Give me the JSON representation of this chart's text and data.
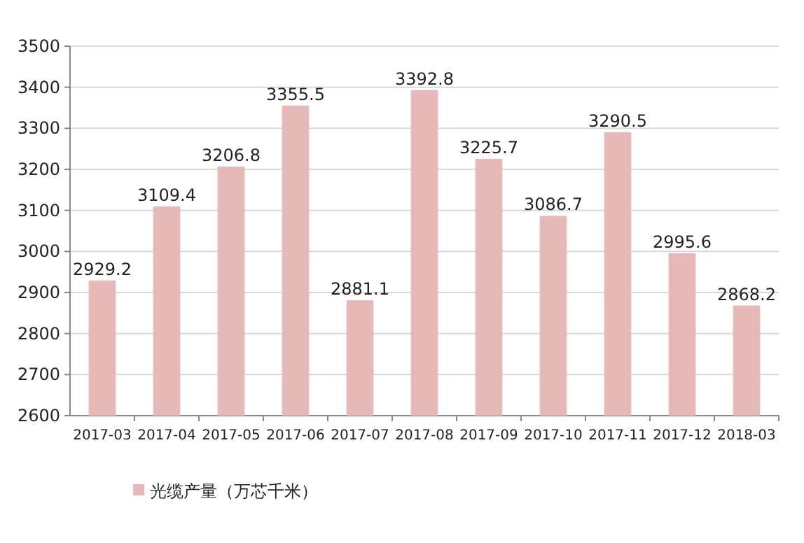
{
  "chart_data": {
    "type": "bar",
    "categories": [
      "2017-03",
      "2017-04",
      "2017-05",
      "2017-06",
      "2017-07",
      "2017-08",
      "2017-09",
      "2017-10",
      "2017-11",
      "2017-12",
      "2018-03"
    ],
    "series": [
      {
        "name": "光缆产量（万芯千米）",
        "color": "#e6b9b8",
        "values": [
          2929.2,
          3109.4,
          3206.8,
          3355.5,
          2881.1,
          3392.8,
          3225.7,
          3086.7,
          3290.5,
          2995.6,
          2868.2
        ]
      }
    ],
    "ylim": [
      2600,
      3500
    ],
    "yticks": [
      2600,
      2700,
      2800,
      2900,
      3000,
      3100,
      3200,
      3300,
      3400,
      3500
    ],
    "grid": "y",
    "legend": "bottom left",
    "data_labels": true
  }
}
